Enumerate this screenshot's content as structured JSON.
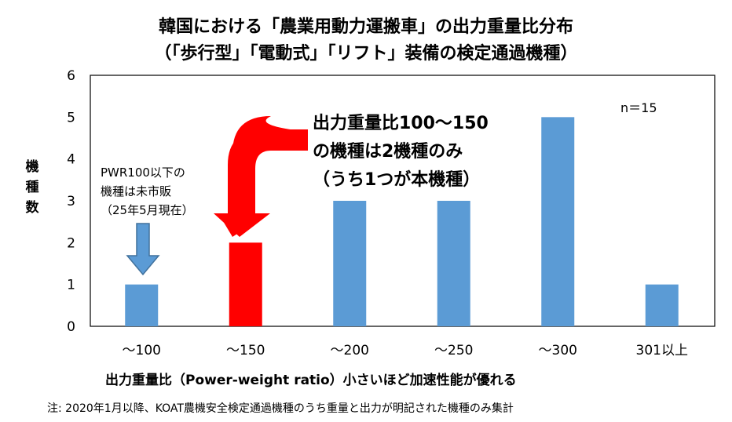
{
  "chart_data": {
    "type": "bar",
    "title": "韓国における「農業用動力運搬車」の出力重量比分布",
    "subtitle": "（「歩行型」「電動式」「リフト」装備の検定通過機種）",
    "categories": [
      "～100",
      "～150",
      "～200",
      "～250",
      "～300",
      "301以上"
    ],
    "values": [
      1,
      2,
      3,
      3,
      5,
      1
    ],
    "bar_colors": [
      "#5b9bd5",
      "#ff0000",
      "#5b9bd5",
      "#5b9bd5",
      "#5b9bd5",
      "#5b9bd5"
    ],
    "xlabel": "出力重量比（Power-weight ratio）小さいほど加速性能が優れる",
    "ylabel": "機種数",
    "ylim": [
      0,
      6
    ],
    "yticks": [
      "0",
      "1",
      "2",
      "3",
      "4",
      "5",
      "6"
    ],
    "grid": false,
    "annotations": {
      "n": "n＝15",
      "highlight": [
        "出力重量比100～150",
        "の機種は2機種のみ",
        "（うち1つが本機種）"
      ],
      "pwr_note": [
        "PWR100以下の",
        "機種は未市販",
        "（25年5月現在）"
      ]
    },
    "footnote": "注: 2020年1月以降、KOAT農機安全検定通過機種のうち重量と出力が明記された機種のみ集計"
  }
}
